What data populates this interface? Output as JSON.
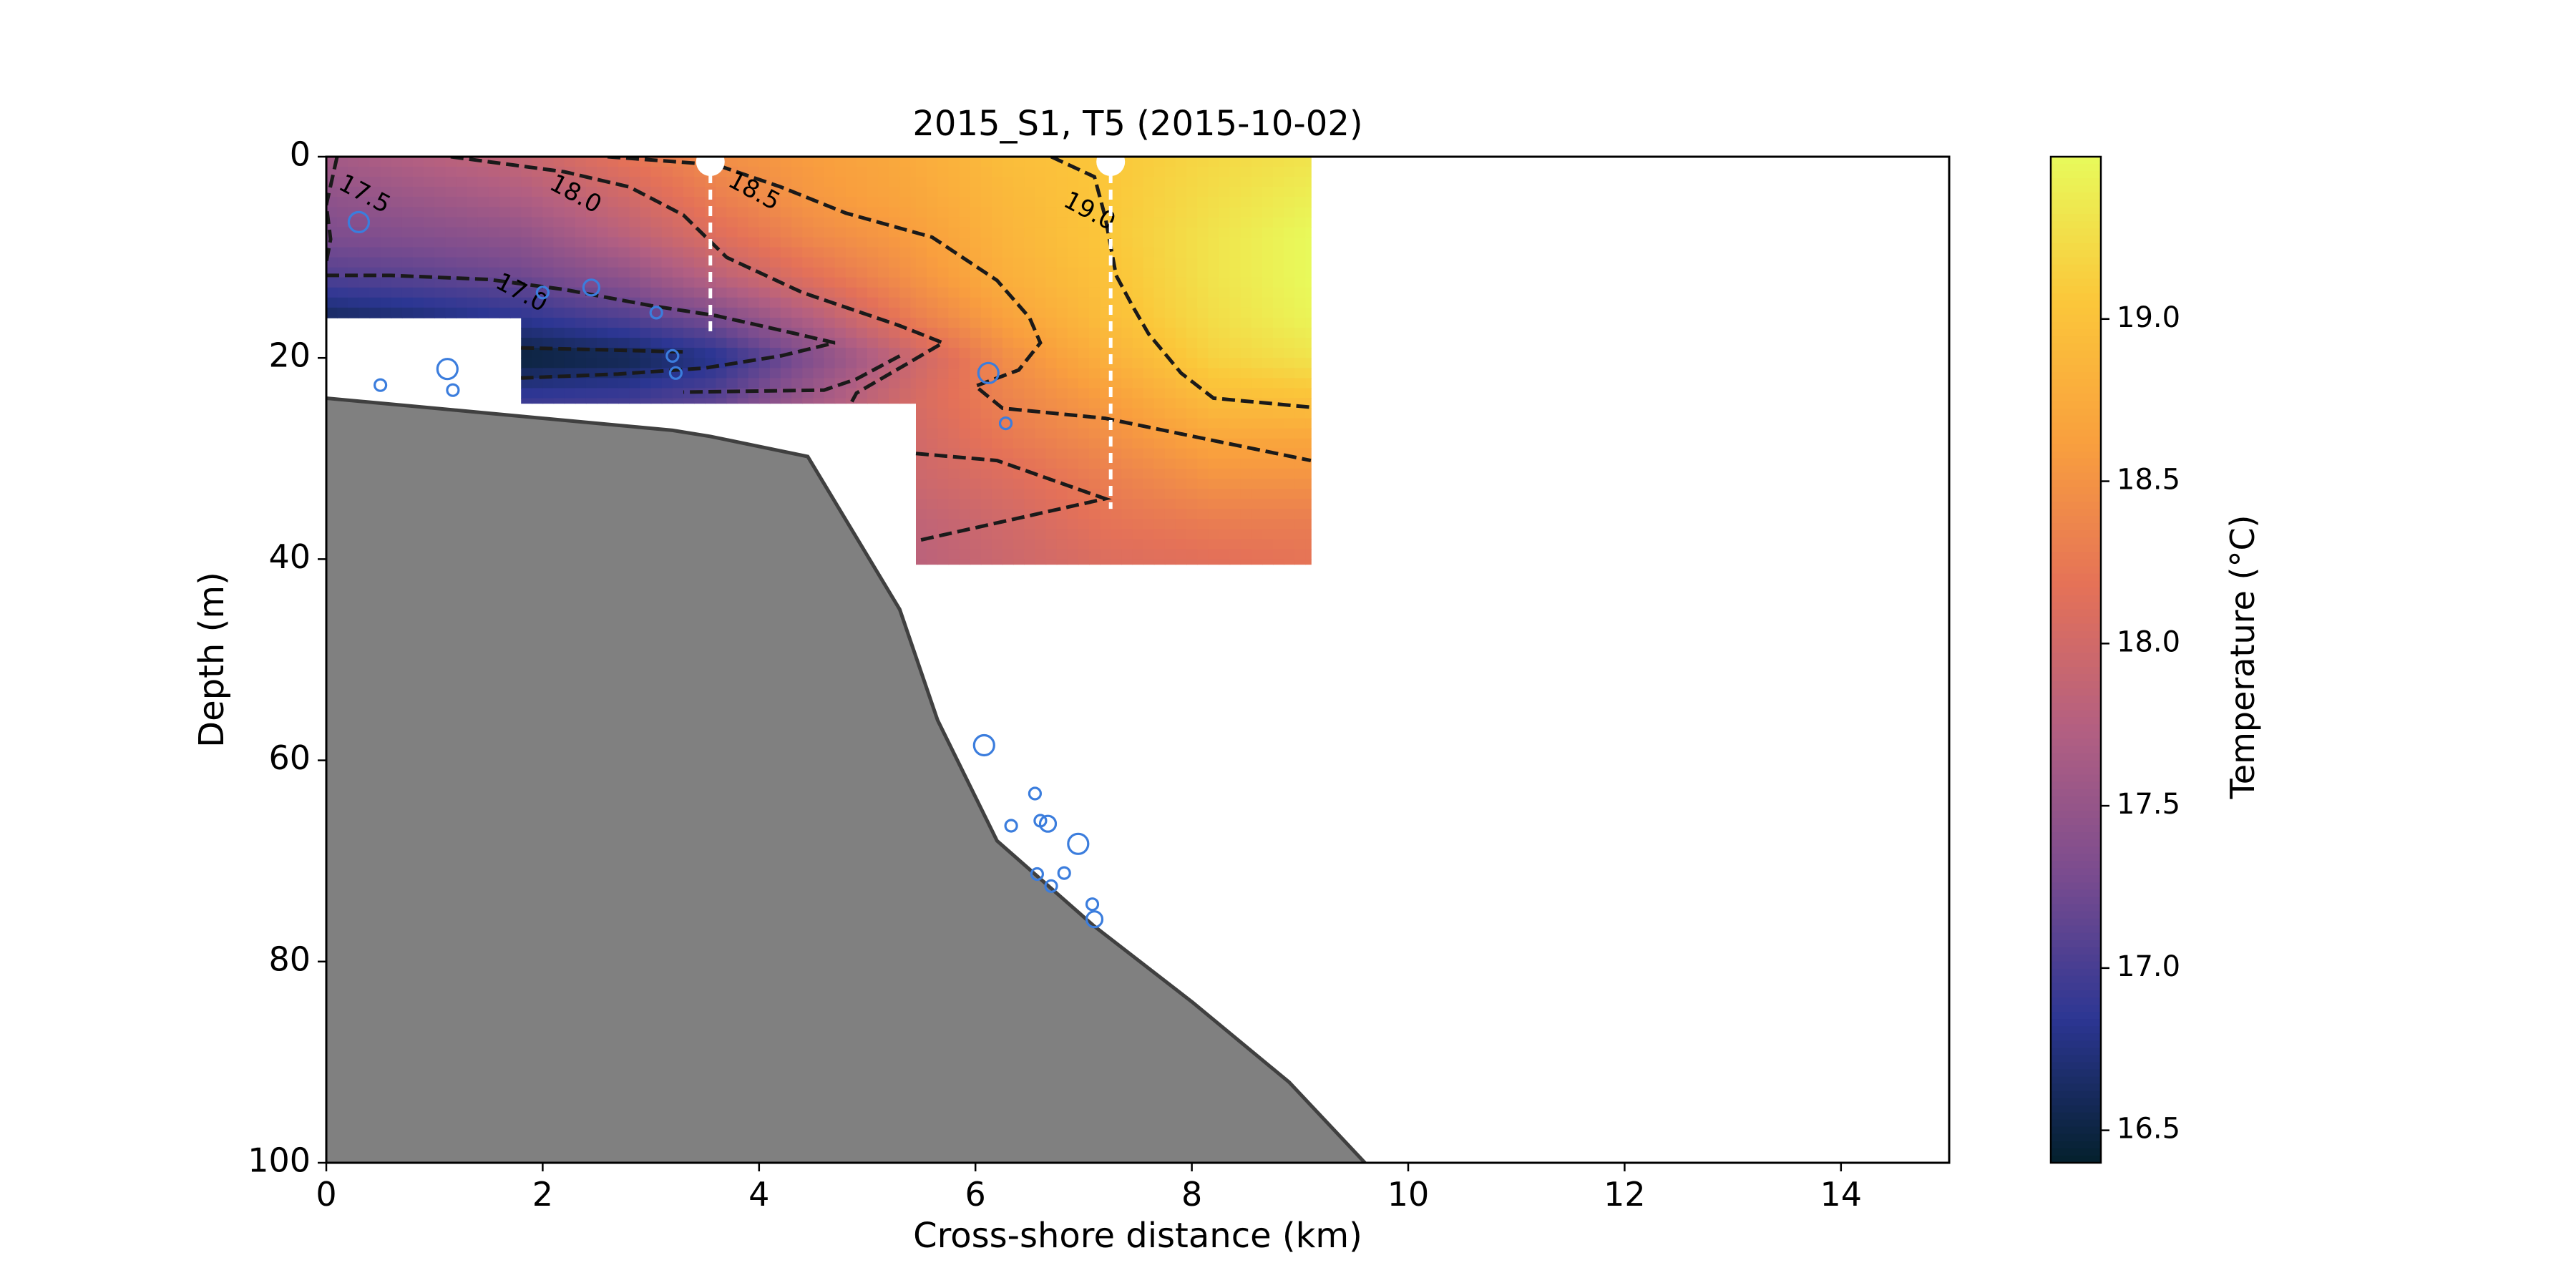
{
  "chart_data": {
    "type": "heatmap",
    "title": "2015_S1, T5 (2015-10-02)",
    "xlabel": "Cross-shore distance (km)",
    "ylabel": "Depth (m)",
    "xlim": [
      0,
      15
    ],
    "ylim": [
      100,
      0
    ],
    "y_inverted": true,
    "grid": false,
    "x_ticks": [
      0,
      2,
      4,
      6,
      8,
      10,
      12,
      14
    ],
    "y_ticks": [
      0,
      20,
      40,
      60,
      80,
      100
    ],
    "colorbar": {
      "label": "Temperature ($^\\circ$C)",
      "label_display": "Temperature (°C)",
      "range": [
        16.4,
        19.5
      ],
      "ticks": [
        16.5,
        17.0,
        17.5,
        18.0,
        18.5,
        19.0
      ],
      "tick_labels": [
        "16.5",
        "17.0",
        "17.5",
        "18.0",
        "18.5",
        "19.0"
      ],
      "colormap": "thermal",
      "colors": [
        "#04202c",
        "#2c3693",
        "#7a4c8f",
        "#b25f82",
        "#e47158",
        "#f99f3e",
        "#fbc73a",
        "#e8fa5b"
      ],
      "placement": "right"
    },
    "temperature_field": {
      "regions": [
        {
          "x_range": [
            0,
            1.8
          ],
          "depth_range": [
            0,
            16
          ]
        },
        {
          "x_range": [
            1.8,
            5.45
          ],
          "depth_range": [
            0,
            24.5
          ]
        },
        {
          "x_range": [
            5.45,
            9.1
          ],
          "depth_range": [
            0,
            40.5
          ]
        }
      ],
      "profiles": [
        {
          "x": 0.0,
          "depths": [
            0,
            4,
            8,
            12,
            16,
            20,
            24,
            28,
            32,
            36,
            40
          ],
          "temps": [
            17.6,
            17.45,
            17.3,
            17.05,
            16.6,
            16.5,
            16.5,
            17.0,
            17.3,
            17.5,
            17.6
          ]
        },
        {
          "x": 0.8,
          "depths": [
            0,
            4,
            8,
            12,
            16,
            20,
            24,
            28,
            32,
            36,
            40
          ],
          "temps": [
            17.75,
            17.55,
            17.35,
            17.1,
            16.7,
            16.55,
            16.6,
            17.1,
            17.35,
            17.5,
            17.6
          ]
        },
        {
          "x": 1.8,
          "depths": [
            0,
            4,
            8,
            12,
            16,
            20,
            24,
            28,
            32,
            36,
            40
          ],
          "temps": [
            17.9,
            17.7,
            17.45,
            17.2,
            16.85,
            16.45,
            16.9,
            17.2,
            17.4,
            17.5,
            17.6
          ]
        },
        {
          "x": 2.8,
          "depths": [
            0,
            4,
            8,
            12,
            16,
            20,
            24,
            28,
            32,
            36,
            40
          ],
          "temps": [
            18.2,
            18.0,
            17.8,
            17.45,
            17.05,
            16.55,
            16.95,
            17.3,
            17.5,
            17.6,
            17.7
          ]
        },
        {
          "x": 3.6,
          "depths": [
            0,
            4,
            8,
            12,
            16,
            20,
            24,
            28,
            32,
            36,
            40
          ],
          "temps": [
            18.45,
            18.3,
            18.1,
            17.8,
            17.3,
            16.8,
            17.1,
            17.4,
            17.6,
            17.7,
            17.8
          ]
        },
        {
          "x": 4.5,
          "depths": [
            0,
            4,
            8,
            12,
            16,
            20,
            24,
            28,
            32,
            36,
            40
          ],
          "temps": [
            18.6,
            18.55,
            18.4,
            18.15,
            17.75,
            17.35,
            17.6,
            17.8,
            17.9,
            18.0,
            18.0
          ]
        },
        {
          "x": 5.45,
          "depths": [
            0,
            4,
            8,
            12,
            16,
            20,
            24,
            28,
            32,
            36,
            40
          ],
          "temps": [
            18.75,
            18.7,
            18.6,
            18.5,
            18.3,
            17.95,
            18.05,
            18.0,
            17.95,
            17.85,
            17.8
          ]
        },
        {
          "x": 6.3,
          "depths": [
            0,
            4,
            8,
            12,
            16,
            20,
            24,
            28,
            32,
            36,
            40
          ],
          "temps": [
            18.95,
            18.9,
            18.85,
            18.8,
            18.65,
            18.45,
            18.35,
            18.25,
            18.1,
            18.0,
            17.95
          ]
        },
        {
          "x": 7.2,
          "depths": [
            0,
            4,
            8,
            12,
            16,
            20,
            24,
            28,
            32,
            36,
            40
          ],
          "temps": [
            19.05,
            19.05,
            19.05,
            19.0,
            18.95,
            18.8,
            18.6,
            18.45,
            18.3,
            18.2,
            18.1
          ]
        },
        {
          "x": 8.2,
          "depths": [
            0,
            4,
            8,
            12,
            16,
            20,
            24,
            28,
            32,
            36,
            40
          ],
          "temps": [
            19.2,
            19.25,
            19.3,
            19.3,
            19.25,
            19.15,
            18.95,
            18.7,
            18.5,
            18.3,
            18.15
          ]
        },
        {
          "x": 9.1,
          "depths": [
            0,
            4,
            8,
            12,
            16,
            20,
            24,
            28,
            32,
            36,
            40
          ],
          "temps": [
            19.3,
            19.4,
            19.5,
            19.5,
            19.45,
            19.3,
            19.0,
            18.7,
            18.5,
            18.3,
            18.2
          ]
        }
      ]
    },
    "contours": [
      {
        "level": 17.0,
        "label": "17.0",
        "segments": [
          [
            [
              0,
              11.8
            ],
            [
              0.6,
              11.8
            ],
            [
              1.5,
              12.2
            ],
            [
              2.2,
              13.2
            ],
            [
              3.0,
              14.8
            ],
            [
              3.6,
              15.8
            ],
            [
              4.3,
              17.5
            ],
            [
              4.7,
              18.5
            ],
            [
              4.2,
              19.8
            ],
            [
              3.5,
              21.0
            ],
            [
              2.7,
              21.6
            ],
            [
              1.8,
              22.0
            ]
          ],
          [
            [
              1.8,
              19.0
            ],
            [
              2.6,
              19.2
            ],
            [
              3.3,
              19.4
            ]
          ]
        ],
        "label_at": [
          1.8,
          13.6
        ]
      },
      {
        "level": 17.5,
        "label": "17.5",
        "segments": [
          [
            [
              0.1,
              0
            ],
            [
              0,
              4.8
            ],
            [
              0.04,
              8.2
            ],
            [
              0,
              10.5
            ]
          ],
          [
            [
              5.3,
              19.8
            ],
            [
              4.9,
              22.1
            ],
            [
              4.6,
              23.2
            ],
            [
              3.3,
              23.4
            ]
          ]
        ],
        "label_at": [
          0.35,
          3.8
        ]
      },
      {
        "level": 18.0,
        "label": "18.0",
        "segments": [
          [
            [
              1.15,
              0
            ],
            [
              2.2,
              1.5
            ],
            [
              2.8,
              3.0
            ],
            [
              3.3,
              5.8
            ],
            [
              3.7,
              10.0
            ],
            [
              4.4,
              13.5
            ],
            [
              5.3,
              16.8
            ],
            [
              5.7,
              18.5
            ],
            [
              5.3,
              21.0
            ],
            [
              4.9,
              23.5
            ],
            [
              4.85,
              24.5
            ]
          ],
          [
            [
              5.45,
              29.5
            ],
            [
              6.2,
              30.2
            ],
            [
              7.2,
              34.0
            ],
            [
              5.45,
              38.2
            ]
          ]
        ],
        "label_at": [
          2.3,
          3.8
        ]
      },
      {
        "level": 18.5,
        "label": "18.5",
        "segments": [
          [
            [
              2.6,
              0
            ],
            [
              3.6,
              0.8
            ],
            [
              4.2,
              3.0
            ],
            [
              4.8,
              5.6
            ],
            [
              5.6,
              8.0
            ],
            [
              6.2,
              12.3
            ],
            [
              6.5,
              16.0
            ],
            [
              6.6,
              18.5
            ],
            [
              6.4,
              21.2
            ],
            [
              6.0,
              22.8
            ],
            [
              6.25,
              25.0
            ],
            [
              7.2,
              26.0
            ],
            [
              9.1,
              30.2
            ]
          ]
        ],
        "label_at": [
          3.95,
          3.5
        ]
      },
      {
        "level": 19.0,
        "label": "19.0",
        "segments": [
          [
            [
              6.7,
              0
            ],
            [
              7.1,
              2.0
            ],
            [
              7.2,
              6.0
            ],
            [
              7.3,
              11.8
            ],
            [
              7.45,
              14.8
            ],
            [
              7.6,
              17.6
            ],
            [
              7.9,
              21.5
            ],
            [
              8.2,
              24.0
            ],
            [
              9.1,
              24.9
            ]
          ]
        ],
        "label_at": [
          7.05,
          5.5
        ]
      }
    ],
    "casts": [
      {
        "x": 3.55,
        "bottom": 17.5
      },
      {
        "x": 7.25,
        "bottom": 35.0
      }
    ],
    "bathymetry": {
      "x": [
        0,
        1.2,
        2.2,
        3.2,
        3.55,
        4.0,
        4.45,
        5.3,
        5.65,
        6.2,
        7.1,
        8.0,
        8.9,
        9.6
      ],
      "depth": [
        24,
        25.2,
        26.2,
        27.2,
        27.8,
        28.8,
        29.8,
        45,
        56,
        68,
        76.5,
        84,
        92,
        100
      ]
    },
    "markers": [
      {
        "x": 0.3,
        "y": 6.5,
        "size": "large"
      },
      {
        "x": 2.0,
        "y": 13.5,
        "size": "small"
      },
      {
        "x": 2.45,
        "y": 13.0,
        "size": "medium"
      },
      {
        "x": 3.05,
        "y": 15.5,
        "size": "small"
      },
      {
        "x": 0.5,
        "y": 22.7,
        "size": "small"
      },
      {
        "x": 1.12,
        "y": 21.1,
        "size": "large"
      },
      {
        "x": 1.17,
        "y": 23.2,
        "size": "small"
      },
      {
        "x": 3.2,
        "y": 19.8,
        "size": "small"
      },
      {
        "x": 3.23,
        "y": 21.5,
        "size": "small"
      },
      {
        "x": 6.12,
        "y": 21.5,
        "size": "large"
      },
      {
        "x": 6.28,
        "y": 26.5,
        "size": "small"
      },
      {
        "x": 6.08,
        "y": 58.5,
        "size": "large"
      },
      {
        "x": 6.55,
        "y": 63.3,
        "size": "small"
      },
      {
        "x": 6.33,
        "y": 66.5,
        "size": "small"
      },
      {
        "x": 6.6,
        "y": 66.0,
        "size": "small"
      },
      {
        "x": 6.67,
        "y": 66.3,
        "size": "medium"
      },
      {
        "x": 6.95,
        "y": 68.3,
        "size": "large"
      },
      {
        "x": 6.57,
        "y": 71.3,
        "size": "small"
      },
      {
        "x": 6.82,
        "y": 71.2,
        "size": "small"
      },
      {
        "x": 6.7,
        "y": 72.5,
        "size": "small"
      },
      {
        "x": 7.08,
        "y": 74.3,
        "size": "small"
      },
      {
        "x": 7.1,
        "y": 75.8,
        "size": "medium"
      }
    ]
  }
}
